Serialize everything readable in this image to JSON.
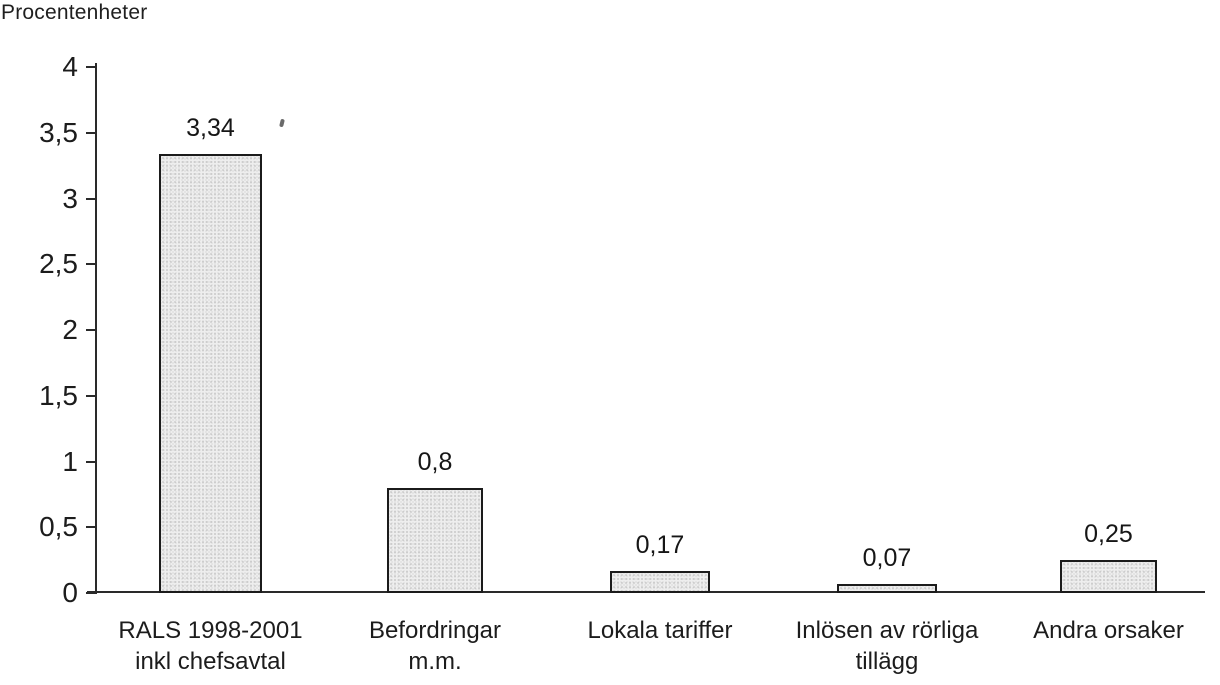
{
  "chart_data": {
    "type": "bar",
    "title": "",
    "xlabel": "",
    "ylabel": "Procentenheter",
    "categories": [
      "RALS 1998-2001 inkl chefsavtal",
      "Befordringar m.m.",
      "Lokala tariffer",
      "Inlösen av rörliga tillägg",
      "Andra orsaker"
    ],
    "category_lines": [
      [
        "RALS 1998-2001",
        "inkl chefsavtal"
      ],
      [
        "Befordringar",
        "m.m."
      ],
      [
        "Lokala tariffer"
      ],
      [
        "Inlösen av rörliga",
        "tillägg"
      ],
      [
        "Andra orsaker"
      ]
    ],
    "values": [
      3.34,
      0.8,
      0.17,
      0.07,
      0.25
    ],
    "data_labels": [
      "3,34",
      "0,8",
      "0,17",
      "0,07",
      "0,25"
    ],
    "y_ticks": [
      "4",
      "3,5",
      "3",
      "2,5",
      "2",
      "1,5",
      "1",
      "0,5",
      "0"
    ],
    "y_tick_values": [
      4,
      3.5,
      3,
      2.5,
      2,
      1.5,
      1,
      0.5,
      0
    ],
    "ylim": [
      0,
      4
    ],
    "grid": false,
    "legend": null,
    "colors": {
      "bar_fill": "#eeeeee",
      "bar_border": "#1b1b1b",
      "axis": "#2a2a2a",
      "text": "#1a1a1a",
      "background": "#ffffff"
    }
  }
}
